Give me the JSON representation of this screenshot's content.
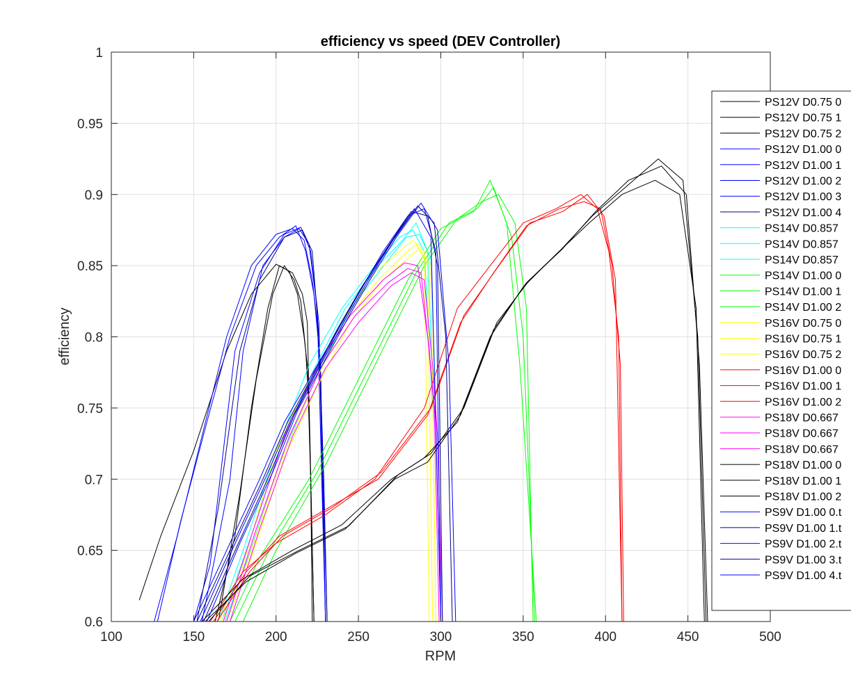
{
  "chart_data": {
    "type": "line",
    "title": "efficiency vs speed (DEV Controller)",
    "xlabel": "RPM",
    "ylabel": "efficiency",
    "xlim": [
      100,
      500
    ],
    "ylim": [
      0.6,
      1
    ],
    "xticks": [
      "100",
      "150",
      "200",
      "250",
      "300",
      "350",
      "400",
      "450",
      "500"
    ],
    "yticks": [
      "0.6",
      "0.65",
      "0.7",
      "0.75",
      "0.8",
      "0.85",
      "0.9",
      "0.95",
      "1"
    ],
    "grid": true,
    "legend_position": "top-right",
    "series": [
      {
        "name": "PS12V D0.75 0",
        "color": "#000000",
        "x": [
          163,
          175,
          185,
          195,
          202,
          208,
          213,
          217,
          219,
          221,
          222
        ],
        "y": [
          0.6,
          0.66,
          0.75,
          0.82,
          0.85,
          0.846,
          0.83,
          0.8,
          0.78,
          0.7,
          0.6
        ]
      },
      {
        "name": "PS12V D0.75 1",
        "color": "#000000",
        "x": [
          165,
          178,
          188,
          198,
          205,
          211,
          215,
          218,
          220,
          223
        ],
        "y": [
          0.6,
          0.69,
          0.77,
          0.83,
          0.85,
          0.84,
          0.825,
          0.79,
          0.75,
          0.6
        ]
      },
      {
        "name": "PS12V D0.75 2",
        "color": "#000000",
        "x": [
          117,
          130,
          150,
          170,
          185,
          200,
          210,
          216,
          219,
          223
        ],
        "y": [
          0.615,
          0.66,
          0.72,
          0.79,
          0.83,
          0.851,
          0.845,
          0.83,
          0.81,
          0.6
        ]
      },
      {
        "name": "PS12V D1.00 0",
        "color": "#0000ff",
        "x": [
          126,
          140,
          155,
          170,
          185,
          200,
          210,
          217,
          222,
          226,
          229,
          231
        ],
        "y": [
          0.6,
          0.66,
          0.73,
          0.8,
          0.85,
          0.872,
          0.876,
          0.868,
          0.84,
          0.8,
          0.7,
          0.6
        ]
      },
      {
        "name": "PS12V D1.00 1",
        "color": "#0000ff",
        "x": [
          128,
          142,
          158,
          172,
          188,
          202,
          212,
          218,
          223,
          227,
          230
        ],
        "y": [
          0.6,
          0.67,
          0.74,
          0.8,
          0.85,
          0.87,
          0.878,
          0.86,
          0.83,
          0.78,
          0.6
        ]
      },
      {
        "name": "PS12V D1.00 2",
        "color": "#0000ff",
        "x": [
          150,
          160,
          175,
          190,
          205,
          215,
          221,
          226,
          230
        ],
        "y": [
          0.6,
          0.64,
          0.79,
          0.845,
          0.872,
          0.877,
          0.86,
          0.81,
          0.6
        ]
      },
      {
        "name": "PS12V D1.00 3",
        "color": "#0000ff",
        "x": [
          155,
          162,
          172,
          180,
          192,
          205,
          214,
          220,
          225,
          230
        ],
        "y": [
          0.6,
          0.64,
          0.7,
          0.79,
          0.85,
          0.87,
          0.876,
          0.865,
          0.82,
          0.6
        ]
      },
      {
        "name": "PS12V D1.00 4",
        "color": "#000080",
        "x": [
          152,
          165,
          178,
          190,
          205,
          216,
          222,
          226,
          231
        ],
        "y": [
          0.6,
          0.68,
          0.79,
          0.84,
          0.87,
          0.875,
          0.86,
          0.8,
          0.6
        ]
      },
      {
        "name": "PS14V D0.857",
        "color": "#00ffff",
        "x": [
          165,
          180,
          200,
          220,
          240,
          260,
          275,
          283,
          290,
          295
        ],
        "y": [
          0.6,
          0.65,
          0.72,
          0.78,
          0.82,
          0.85,
          0.87,
          0.875,
          0.86,
          0.75
        ]
      },
      {
        "name": "PS14V D0.857",
        "color": "#00ffff",
        "x": [
          167,
          182,
          202,
          222,
          242,
          262,
          277,
          285,
          292,
          296
        ],
        "y": [
          0.6,
          0.65,
          0.72,
          0.775,
          0.82,
          0.85,
          0.868,
          0.88,
          0.86,
          0.74
        ]
      },
      {
        "name": "PS14V D0.857",
        "color": "#00ffff",
        "x": [
          169,
          184,
          204,
          224,
          244,
          264,
          279,
          287,
          294,
          297
        ],
        "y": [
          0.6,
          0.648,
          0.718,
          0.77,
          0.818,
          0.848,
          0.87,
          0.872,
          0.855,
          0.75
        ]
      },
      {
        "name": "PS14V D1.00 0",
        "color": "#00ff00",
        "x": [
          180,
          200,
          230,
          260,
          290,
          310,
          325,
          335,
          345,
          352,
          356
        ],
        "y": [
          0.6,
          0.65,
          0.71,
          0.78,
          0.85,
          0.883,
          0.895,
          0.9,
          0.88,
          0.82,
          0.6
        ]
      },
      {
        "name": "PS14V D1.00 1",
        "color": "#00ff00",
        "x": [
          175,
          195,
          225,
          255,
          285,
          305,
          322,
          332,
          343,
          350,
          357
        ],
        "y": [
          0.6,
          0.648,
          0.705,
          0.775,
          0.845,
          0.88,
          0.89,
          0.905,
          0.87,
          0.8,
          0.6
        ]
      },
      {
        "name": "PS14V D1.00 2",
        "color": "#00ff00",
        "x": [
          172,
          190,
          220,
          250,
          280,
          300,
          320,
          330,
          340,
          348,
          358
        ],
        "y": [
          0.6,
          0.645,
          0.7,
          0.77,
          0.84,
          0.876,
          0.888,
          0.91,
          0.88,
          0.78,
          0.6
        ]
      },
      {
        "name": "PS16V D0.75 0",
        "color": "#ffff00",
        "x": [
          165,
          180,
          200,
          220,
          240,
          260,
          275,
          283,
          290,
          293
        ],
        "y": [
          0.6,
          0.64,
          0.72,
          0.77,
          0.81,
          0.845,
          0.86,
          0.868,
          0.86,
          0.6
        ]
      },
      {
        "name": "PS16V D0.75 1",
        "color": "#ffff00",
        "x": [
          167,
          182,
          202,
          222,
          242,
          262,
          277,
          285,
          292,
          295
        ],
        "y": [
          0.6,
          0.64,
          0.71,
          0.765,
          0.81,
          0.84,
          0.857,
          0.865,
          0.85,
          0.6
        ]
      },
      {
        "name": "PS16V D0.75 2",
        "color": "#ffff00",
        "x": [
          170,
          185,
          205,
          225,
          245,
          265,
          280,
          287,
          294,
          297
        ],
        "y": [
          0.6,
          0.645,
          0.715,
          0.765,
          0.81,
          0.84,
          0.855,
          0.862,
          0.85,
          0.6
        ]
      },
      {
        "name": "PS16V D1.00 0",
        "color": "#ff0000",
        "x": [
          160,
          180,
          200,
          230,
          260,
          290,
          310,
          330,
          350,
          370,
          385,
          395,
          402,
          408,
          410
        ],
        "y": [
          0.6,
          0.635,
          0.655,
          0.675,
          0.7,
          0.75,
          0.82,
          0.85,
          0.88,
          0.89,
          0.9,
          0.89,
          0.86,
          0.8,
          0.6
        ]
      },
      {
        "name": "PS16V D1.00 1",
        "color": "#ff0000",
        "x": [
          162,
          182,
          202,
          232,
          262,
          292,
          312,
          332,
          352,
          372,
          387,
          397,
          404,
          409,
          411
        ],
        "y": [
          0.6,
          0.635,
          0.66,
          0.68,
          0.7,
          0.745,
          0.81,
          0.845,
          0.878,
          0.89,
          0.895,
          0.89,
          0.85,
          0.78,
          0.6
        ]
      },
      {
        "name": "PS16V D1.00 2",
        "color": "#ff0000",
        "x": [
          164,
          184,
          204,
          234,
          264,
          294,
          314,
          334,
          354,
          374,
          389,
          399,
          406,
          410
        ],
        "y": [
          0.6,
          0.635,
          0.66,
          0.68,
          0.705,
          0.75,
          0.815,
          0.848,
          0.88,
          0.888,
          0.9,
          0.885,
          0.84,
          0.6
        ]
      },
      {
        "name": "PS18V D0.667",
        "color": "#ff00ff",
        "x": [
          168,
          185,
          205,
          225,
          245,
          265,
          278,
          286,
          292,
          296,
          299
        ],
        "y": [
          0.6,
          0.66,
          0.73,
          0.78,
          0.815,
          0.84,
          0.852,
          0.85,
          0.8,
          0.75,
          0.6
        ]
      },
      {
        "name": "PS18V D0.667",
        "color": "#ff00ff",
        "x": [
          170,
          188,
          208,
          228,
          248,
          268,
          280,
          288,
          293,
          297,
          300
        ],
        "y": [
          0.6,
          0.665,
          0.73,
          0.78,
          0.815,
          0.838,
          0.848,
          0.845,
          0.79,
          0.74,
          0.6
        ]
      },
      {
        "name": "PS18V D0.667",
        "color": "#ff00ff",
        "x": [
          172,
          190,
          210,
          230,
          250,
          270,
          282,
          290,
          295,
          298,
          301
        ],
        "y": [
          0.6,
          0.665,
          0.73,
          0.778,
          0.81,
          0.836,
          0.845,
          0.84,
          0.78,
          0.73,
          0.6
        ]
      },
      {
        "name": "PS18V D1.00 0",
        "color": "#000000",
        "x": [
          155,
          180,
          210,
          240,
          270,
          290,
          310,
          330,
          350,
          370,
          390,
          410,
          430,
          445,
          455,
          460
        ],
        "y": [
          0.6,
          0.63,
          0.65,
          0.668,
          0.7,
          0.715,
          0.74,
          0.8,
          0.835,
          0.858,
          0.88,
          0.9,
          0.91,
          0.9,
          0.82,
          0.6
        ]
      },
      {
        "name": "PS18V D1.00 1",
        "color": "#000000",
        "x": [
          157,
          182,
          212,
          242,
          272,
          292,
          312,
          332,
          352,
          372,
          392,
          412,
          432,
          447,
          456,
          461
        ],
        "y": [
          0.6,
          0.628,
          0.648,
          0.665,
          0.7,
          0.712,
          0.745,
          0.805,
          0.838,
          0.86,
          0.885,
          0.905,
          0.925,
          0.91,
          0.8,
          0.6
        ]
      },
      {
        "name": "PS18V D1.00 2",
        "color": "#000000",
        "x": [
          159,
          184,
          214,
          244,
          274,
          294,
          314,
          334,
          354,
          374,
          394,
          414,
          434,
          449,
          457,
          462
        ],
        "y": [
          0.6,
          0.632,
          0.65,
          0.667,
          0.703,
          0.718,
          0.75,
          0.81,
          0.84,
          0.862,
          0.888,
          0.91,
          0.92,
          0.9,
          0.78,
          0.6
        ]
      },
      {
        "name": "PS9V D1.00 0.t",
        "color": "#0000ff",
        "x": [
          150,
          170,
          190,
          205,
          220,
          235,
          250,
          265,
          280,
          290,
          297,
          300
        ],
        "y": [
          0.6,
          0.65,
          0.7,
          0.74,
          0.77,
          0.8,
          0.83,
          0.86,
          0.885,
          0.89,
          0.86,
          0.6
        ]
      },
      {
        "name": "PS9V D1.00 1.t",
        "color": "#000080",
        "x": [
          152,
          172,
          192,
          207,
          222,
          237,
          252,
          267,
          282,
          292,
          298,
          301
        ],
        "y": [
          0.6,
          0.65,
          0.7,
          0.74,
          0.772,
          0.805,
          0.835,
          0.862,
          0.888,
          0.885,
          0.85,
          0.6
        ]
      },
      {
        "name": "PS9V D1.00 2.t",
        "color": "#0000ff",
        "x": [
          154,
          174,
          194,
          209,
          224,
          239,
          254,
          269,
          284,
          294,
          300
        ],
        "y": [
          0.6,
          0.652,
          0.702,
          0.742,
          0.775,
          0.808,
          0.838,
          0.865,
          0.89,
          0.87,
          0.6
        ]
      },
      {
        "name": "PS9V D1.00 3.t",
        "color": "#000080",
        "x": [
          156,
          176,
          196,
          211,
          226,
          241,
          256,
          271,
          286,
          296,
          303,
          307
        ],
        "y": [
          0.6,
          0.652,
          0.703,
          0.745,
          0.778,
          0.81,
          0.84,
          0.868,
          0.892,
          0.88,
          0.8,
          0.6
        ]
      },
      {
        "name": "PS9V D1.00 4.t",
        "color": "#0000ff",
        "x": [
          158,
          178,
          198,
          213,
          228,
          243,
          258,
          273,
          288,
          298,
          305,
          309
        ],
        "y": [
          0.6,
          0.655,
          0.705,
          0.748,
          0.78,
          0.812,
          0.842,
          0.87,
          0.894,
          0.875,
          0.78,
          0.6
        ]
      }
    ]
  }
}
